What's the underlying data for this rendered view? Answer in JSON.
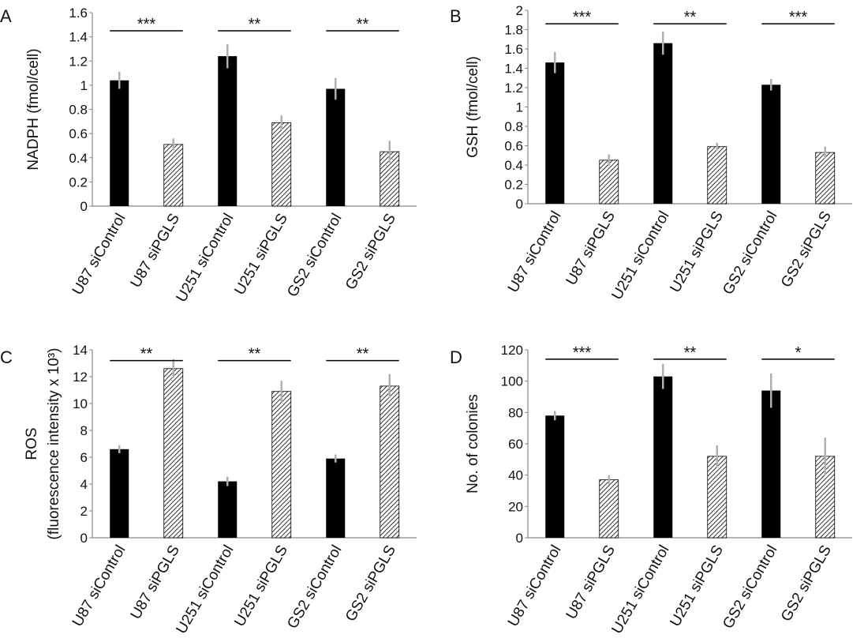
{
  "chart_data": [
    {
      "panel": "A",
      "type": "bar",
      "categories": [
        "U87 siControl",
        "U87 siPGLS",
        "U251 siControl",
        "U251 siPGLS",
        "GS2 siControl",
        "GS2 siPGLS"
      ],
      "values": [
        1.04,
        0.51,
        1.24,
        0.69,
        0.97,
        0.45
      ],
      "errors": [
        0.07,
        0.05,
        0.1,
        0.06,
        0.09,
        0.09
      ],
      "ylabel": [
        "NADPH (fmol/cell)"
      ],
      "ylim": [
        0,
        1.6
      ],
      "yticks": [
        "0",
        "0.2",
        "0.4",
        "0.6",
        "0.8",
        "1",
        "1.2",
        "1.4",
        "1.6"
      ],
      "significance": [
        {
          "pair": [
            0,
            1
          ],
          "label": "***",
          "y": 1.45
        },
        {
          "pair": [
            2,
            3
          ],
          "label": "**",
          "y": 1.45
        },
        {
          "pair": [
            4,
            5
          ],
          "label": "**",
          "y": 1.45
        }
      ],
      "fills": [
        "solid",
        "hatched",
        "solid",
        "hatched",
        "solid",
        "hatched"
      ],
      "grid": false
    },
    {
      "panel": "B",
      "type": "bar",
      "categories": [
        "U87 siControl",
        "U87 siPGLS",
        "U251 siControl",
        "U251 siPGLS",
        "GS2 siControl",
        "GS2 siPGLS"
      ],
      "values": [
        1.46,
        0.45,
        1.66,
        0.59,
        1.23,
        0.53
      ],
      "errors": [
        0.11,
        0.06,
        0.12,
        0.04,
        0.06,
        0.06
      ],
      "ylabel": [
        "GSH (fmol/cell)"
      ],
      "ylim": [
        0,
        2
      ],
      "yticks": [
        "0",
        "0.2",
        "0.4",
        "0.6",
        "0.8",
        "1",
        "1.2",
        "1.4",
        "1.6",
        "1.8",
        "2"
      ],
      "significance": [
        {
          "pair": [
            0,
            1
          ],
          "label": "***",
          "y": 1.86
        },
        {
          "pair": [
            2,
            3
          ],
          "label": "**",
          "y": 1.86
        },
        {
          "pair": [
            4,
            5
          ],
          "label": "***",
          "y": 1.86
        }
      ],
      "fills": [
        "solid",
        "hatched",
        "solid",
        "hatched",
        "solid",
        "hatched"
      ],
      "grid": false
    },
    {
      "panel": "C",
      "type": "bar",
      "categories": [
        "U87 siControl",
        "U87 siPGLS",
        "U251 siControl",
        "U251 siPGLS",
        "GS2 siControl",
        "GS2 siPGLS"
      ],
      "values": [
        6.6,
        12.6,
        4.2,
        10.9,
        5.9,
        11.3
      ],
      "errors": [
        0.3,
        0.7,
        0.35,
        0.8,
        0.3,
        0.9
      ],
      "ylabel": [
        "ROS",
        "(fluorescence intensity x 10³)"
      ],
      "ylim": [
        0,
        14
      ],
      "yticks": [
        "0",
        "2",
        "4",
        "6",
        "8",
        "10",
        "12",
        "14"
      ],
      "significance": [
        {
          "pair": [
            0,
            1
          ],
          "label": "**",
          "y": 13.2
        },
        {
          "pair": [
            2,
            3
          ],
          "label": "**",
          "y": 13.2
        },
        {
          "pair": [
            4,
            5
          ],
          "label": "**",
          "y": 13.2
        }
      ],
      "fills": [
        "solid",
        "hatched",
        "solid",
        "hatched",
        "solid",
        "hatched"
      ],
      "grid": false
    },
    {
      "panel": "D",
      "type": "bar",
      "categories": [
        "U87 siControl",
        "U87 siPGLS",
        "U251 siControl",
        "U251 siPGLS",
        "GS2 siControl",
        "GS2 siPGLS"
      ],
      "values": [
        78,
        37,
        103,
        52,
        94,
        52
      ],
      "errors": [
        3,
        3,
        8,
        7,
        11,
        12
      ],
      "ylabel": [
        "No. of colonies"
      ],
      "ylim": [
        0,
        120
      ],
      "yticks": [
        "0",
        "20",
        "40",
        "60",
        "80",
        "100",
        "120"
      ],
      "significance": [
        {
          "pair": [
            0,
            1
          ],
          "label": "***",
          "y": 114
        },
        {
          "pair": [
            2,
            3
          ],
          "label": "**",
          "y": 114
        },
        {
          "pair": [
            4,
            5
          ],
          "label": "*",
          "y": 114
        }
      ],
      "fills": [
        "solid",
        "hatched",
        "solid",
        "hatched",
        "solid",
        "hatched"
      ],
      "grid": false
    }
  ],
  "colors": {
    "bar_solid": "#000000",
    "hatch_line": "#333333",
    "hatch_bg": "#ffffff",
    "error_bar": "#b0b0b0",
    "axis": "#888888"
  }
}
